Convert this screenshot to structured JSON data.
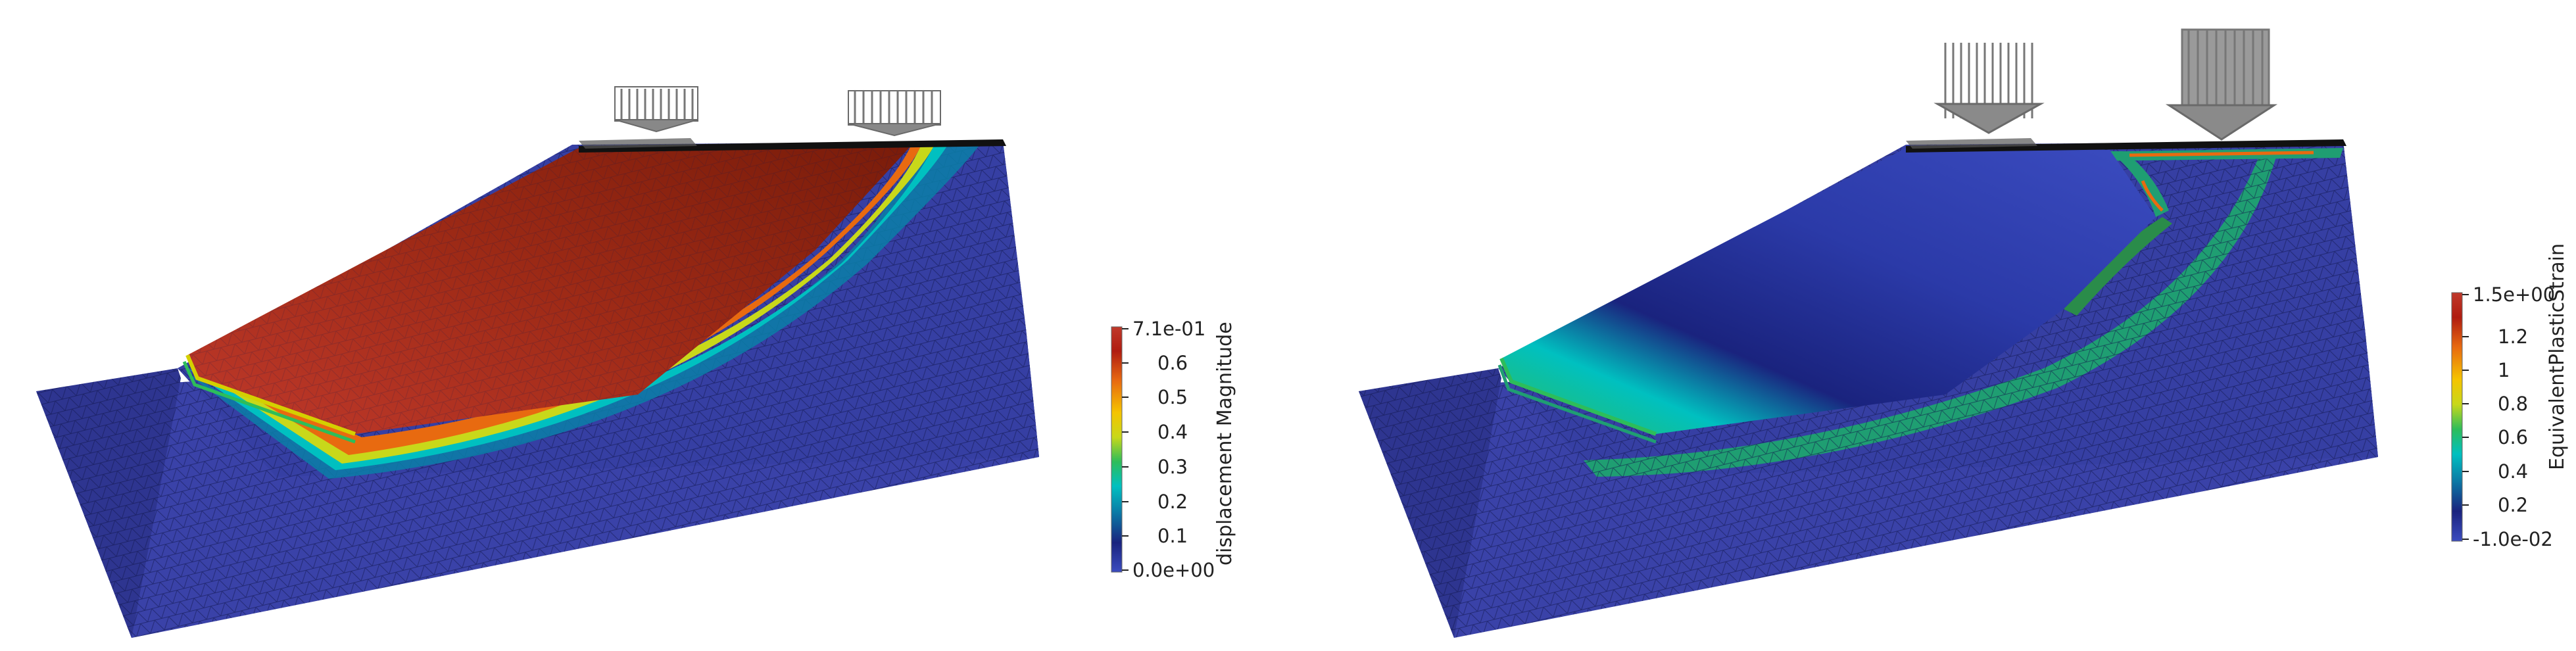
{
  "panels": [
    {
      "field": "displacement Magnitude",
      "range_label_max": "7.1e-01",
      "range_label_min": "0.0e+00",
      "ticks": [
        "0.6",
        "0.5",
        "0.4",
        "0.3",
        "0.2",
        "0.1"
      ]
    },
    {
      "field": "EquivalentPlasticStrain",
      "range_label_max": "1.5e+00",
      "range_label_min": "-1.0e-02",
      "ticks": [
        "1.2",
        "1",
        "0.8",
        "0.6",
        "0.4",
        "0.2"
      ]
    }
  ],
  "colormap": [
    "#3b4cc0",
    "#1a237e",
    "#0a7fa8",
    "#00c0c0",
    "#2dbd5a",
    "#c8d81a",
    "#f5c400",
    "#e86a10",
    "#b01c10",
    "#7a0a06"
  ]
}
